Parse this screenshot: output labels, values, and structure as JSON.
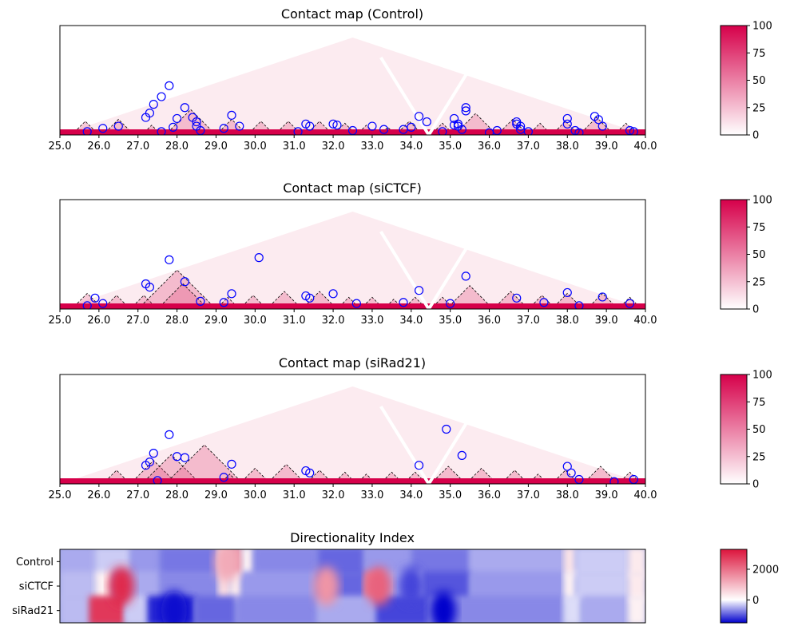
{
  "chart_data": [
    {
      "type": "heatmap",
      "title": "Contact map (Control)",
      "xlim": [
        25.0,
        40.0
      ],
      "xticks": [
        "25.0",
        "26.0",
        "27.0",
        "28.0",
        "29.0",
        "30.0",
        "31.0",
        "32.0",
        "33.0",
        "34.0",
        "35.0",
        "36.0",
        "37.0",
        "38.0",
        "39.0",
        "40.0"
      ],
      "colorbar": {
        "ticks": [
          "0",
          "25",
          "50",
          "75",
          "100"
        ],
        "range": [
          0,
          100
        ],
        "colors": [
          "#ffffff",
          "#d6004a"
        ]
      },
      "tads": [
        [
          25.3,
          26.0
        ],
        [
          26.1,
          26.9
        ],
        [
          27.1,
          27.6
        ],
        [
          27.7,
          29.0
        ],
        [
          29.0,
          29.8
        ],
        [
          29.8,
          30.5
        ],
        [
          30.5,
          31.2
        ],
        [
          31.3,
          32.0
        ],
        [
          32.0,
          32.6
        ],
        [
          32.6,
          33.1
        ],
        [
          33.2,
          33.6
        ],
        [
          33.6,
          34.3
        ],
        [
          34.5,
          35.1
        ],
        [
          35.1,
          36.2
        ],
        [
          36.2,
          37.0
        ],
        [
          37.0,
          37.6
        ],
        [
          37.6,
          38.3
        ],
        [
          38.3,
          39.2
        ],
        [
          39.2,
          39.8
        ]
      ],
      "loops": [
        [
          25.7,
          0.03
        ],
        [
          26.1,
          0.06
        ],
        [
          26.5,
          0.08
        ],
        [
          27.2,
          0.16
        ],
        [
          27.3,
          0.2
        ],
        [
          27.4,
          0.28
        ],
        [
          27.6,
          0.35
        ],
        [
          27.8,
          0.45
        ],
        [
          27.6,
          0.03
        ],
        [
          27.9,
          0.07
        ],
        [
          28.0,
          0.15
        ],
        [
          28.2,
          0.25
        ],
        [
          28.4,
          0.16
        ],
        [
          28.5,
          0.12
        ],
        [
          28.5,
          0.08
        ],
        [
          28.6,
          0.04
        ],
        [
          29.2,
          0.06
        ],
        [
          29.4,
          0.18
        ],
        [
          29.6,
          0.08
        ],
        [
          31.1,
          0.03
        ],
        [
          31.3,
          0.1
        ],
        [
          31.4,
          0.08
        ],
        [
          32.0,
          0.1
        ],
        [
          32.1,
          0.09
        ],
        [
          32.5,
          0.04
        ],
        [
          33.0,
          0.08
        ],
        [
          33.3,
          0.05
        ],
        [
          33.8,
          0.05
        ],
        [
          34.0,
          0.07
        ],
        [
          34.2,
          0.17
        ],
        [
          34.4,
          0.12
        ],
        [
          34.8,
          0.03
        ],
        [
          35.1,
          0.15
        ],
        [
          35.1,
          0.09
        ],
        [
          35.2,
          0.1
        ],
        [
          35.2,
          0.08
        ],
        [
          35.3,
          0.05
        ],
        [
          35.4,
          0.25
        ],
        [
          35.4,
          0.22
        ],
        [
          36.0,
          0.02
        ],
        [
          36.2,
          0.04
        ],
        [
          36.7,
          0.12
        ],
        [
          36.7,
          0.1
        ],
        [
          36.8,
          0.08
        ],
        [
          36.8,
          0.05
        ],
        [
          37.0,
          0.03
        ],
        [
          38.0,
          0.1
        ],
        [
          38.0,
          0.15
        ],
        [
          38.2,
          0.04
        ],
        [
          38.3,
          0.02
        ],
        [
          38.7,
          0.17
        ],
        [
          38.8,
          0.14
        ],
        [
          38.9,
          0.08
        ],
        [
          39.6,
          0.04
        ],
        [
          39.7,
          0.03
        ]
      ]
    },
    {
      "type": "heatmap",
      "title": "Contact map (siCTCF)",
      "xlim": [
        25.0,
        40.0
      ],
      "xticks": [
        "25.0",
        "26.0",
        "27.0",
        "28.0",
        "29.0",
        "30.0",
        "31.0",
        "32.0",
        "33.0",
        "34.0",
        "35.0",
        "36.0",
        "37.0",
        "38.0",
        "39.0",
        "40.0"
      ],
      "colorbar": {
        "ticks": [
          "0",
          "25",
          "50",
          "75",
          "100"
        ],
        "range": [
          0,
          100
        ],
        "colors": [
          "#ffffff",
          "#d6004a"
        ]
      },
      "tads": [
        [
          25.3,
          26.1
        ],
        [
          26.1,
          26.8
        ],
        [
          26.8,
          27.5
        ],
        [
          27.0,
          29.0
        ],
        [
          27.5,
          28.8
        ],
        [
          29.0,
          29.6
        ],
        [
          29.6,
          30.3
        ],
        [
          30.3,
          31.2
        ],
        [
          31.2,
          32.1
        ],
        [
          32.1,
          32.7
        ],
        [
          32.7,
          33.3
        ],
        [
          33.3,
          33.8
        ],
        [
          33.8,
          34.4
        ],
        [
          34.5,
          35.1
        ],
        [
          34.9,
          36.1
        ],
        [
          36.1,
          37.0
        ],
        [
          37.0,
          37.7
        ],
        [
          37.6,
          38.4
        ],
        [
          38.5,
          39.3
        ],
        [
          39.3,
          39.9
        ]
      ],
      "loops": [
        [
          25.7,
          0.03
        ],
        [
          25.9,
          0.1
        ],
        [
          26.1,
          0.05
        ],
        [
          27.2,
          0.23
        ],
        [
          27.3,
          0.2
        ],
        [
          27.8,
          0.45
        ],
        [
          28.2,
          0.25
        ],
        [
          28.6,
          0.07
        ],
        [
          29.2,
          0.06
        ],
        [
          29.4,
          0.14
        ],
        [
          30.1,
          0.47
        ],
        [
          31.3,
          0.12
        ],
        [
          31.4,
          0.1
        ],
        [
          32.0,
          0.14
        ],
        [
          32.6,
          0.05
        ],
        [
          33.8,
          0.06
        ],
        [
          34.2,
          0.17
        ],
        [
          35.0,
          0.05
        ],
        [
          35.4,
          0.3
        ],
        [
          36.7,
          0.1
        ],
        [
          37.4,
          0.06
        ],
        [
          38.0,
          0.15
        ],
        [
          38.3,
          0.03
        ],
        [
          38.9,
          0.11
        ],
        [
          39.6,
          0.05
        ]
      ]
    },
    {
      "type": "heatmap",
      "title": "Contact map (siRad21)",
      "xlim": [
        25.0,
        40.0
      ],
      "xticks": [
        "25.0",
        "26.0",
        "27.0",
        "28.0",
        "29.0",
        "30.0",
        "31.0",
        "32.0",
        "33.0",
        "34.0",
        "35.0",
        "36.0",
        "37.0",
        "38.0",
        "39.0",
        "40.0"
      ],
      "colorbar": {
        "ticks": [
          "0",
          "25",
          "50",
          "75",
          "100"
        ],
        "range": [
          0,
          100
        ],
        "colors": [
          "#ffffff",
          "#d6004a"
        ]
      },
      "tads": [
        [
          26.1,
          26.8
        ],
        [
          26.8,
          28.0
        ],
        [
          27.1,
          28.6
        ],
        [
          27.7,
          29.7
        ],
        [
          29.1,
          29.6
        ],
        [
          29.6,
          30.4
        ],
        [
          30.3,
          31.3
        ],
        [
          31.3,
          32.0
        ],
        [
          32.0,
          32.6
        ],
        [
          32.6,
          33.1
        ],
        [
          33.2,
          33.8
        ],
        [
          33.8,
          34.4
        ],
        [
          34.5,
          35.4
        ],
        [
          35.4,
          36.2
        ],
        [
          36.3,
          37.0
        ],
        [
          37.0,
          37.5
        ],
        [
          37.6,
          38.3
        ],
        [
          38.4,
          39.3
        ],
        [
          39.3,
          39.9
        ]
      ],
      "loops": [
        [
          27.2,
          0.17
        ],
        [
          27.3,
          0.2
        ],
        [
          27.4,
          0.28
        ],
        [
          27.5,
          0.03
        ],
        [
          27.8,
          0.45
        ],
        [
          28.0,
          0.25
        ],
        [
          28.2,
          0.24
        ],
        [
          29.2,
          0.06
        ],
        [
          29.4,
          0.18
        ],
        [
          31.3,
          0.12
        ],
        [
          31.4,
          0.1
        ],
        [
          34.2,
          0.17
        ],
        [
          34.9,
          0.5
        ],
        [
          35.3,
          0.26
        ],
        [
          38.0,
          0.16
        ],
        [
          38.1,
          0.1
        ],
        [
          38.3,
          0.04
        ],
        [
          39.2,
          0.02
        ],
        [
          39.7,
          0.04
        ]
      ]
    },
    {
      "type": "heatmap",
      "title": "Directionality Index",
      "rows": [
        "Control",
        "siCTCF",
        "siRad21"
      ],
      "colorbar": {
        "ticks": [
          "2000",
          "0"
        ],
        "range": [
          -1500,
          3300
        ],
        "colors": [
          "#0000cc",
          "#ffffff",
          "#dc143c"
        ]
      },
      "segments": [
        [
          [
            -500,
            0.0,
            0.06
          ],
          [
            -300,
            0.06,
            0.12
          ],
          [
            -600,
            0.12,
            0.17
          ],
          [
            -800,
            0.17,
            0.27
          ],
          [
            300,
            0.27,
            0.29
          ],
          [
            1500,
            0.29,
            0.31
          ],
          [
            200,
            0.31,
            0.33
          ],
          [
            -700,
            0.33,
            0.44
          ],
          [
            -900,
            0.44,
            0.52
          ],
          [
            -600,
            0.52,
            0.6
          ],
          [
            -800,
            0.6,
            0.7
          ],
          [
            -500,
            0.7,
            0.86
          ],
          [
            400,
            0.86,
            0.88
          ],
          [
            -300,
            0.88,
            0.97
          ],
          [
            300,
            0.97,
            1.0
          ]
        ],
        [
          [
            -400,
            0.0,
            0.06
          ],
          [
            200,
            0.06,
            0.09
          ],
          [
            -500,
            0.09,
            0.17
          ],
          [
            -700,
            0.17,
            0.27
          ],
          [
            500,
            0.27,
            0.29
          ],
          [
            300,
            0.29,
            0.31
          ],
          [
            -600,
            0.31,
            0.44
          ],
          [
            -900,
            0.44,
            0.52
          ],
          [
            1800,
            0.52,
            0.55
          ],
          [
            -500,
            0.55,
            0.62
          ],
          [
            -1000,
            0.62,
            0.7
          ],
          [
            -600,
            0.7,
            0.86
          ],
          [
            200,
            0.86,
            0.88
          ],
          [
            -300,
            0.88,
            0.97
          ],
          [
            300,
            0.97,
            1.0
          ]
        ],
        [
          [
            -400,
            0.0,
            0.05
          ],
          [
            2800,
            0.05,
            0.11
          ],
          [
            -300,
            0.11,
            0.15
          ],
          [
            -1300,
            0.15,
            0.23
          ],
          [
            -900,
            0.23,
            0.3
          ],
          [
            -700,
            0.3,
            0.44
          ],
          [
            -500,
            0.44,
            0.54
          ],
          [
            -1100,
            0.54,
            0.63
          ],
          [
            -700,
            0.63,
            0.86
          ],
          [
            -200,
            0.86,
            0.89
          ],
          [
            -500,
            0.89,
            0.97
          ],
          [
            200,
            0.97,
            1.0
          ]
        ]
      ],
      "blobs": [
        [
          0.105,
          1,
          3000
        ],
        [
          0.545,
          1,
          2200
        ],
        [
          0.455,
          1,
          1500
        ],
        [
          0.285,
          0,
          1200
        ],
        [
          0.655,
          2,
          -1500
        ],
        [
          0.195,
          2,
          -1400
        ],
        [
          0.6,
          1,
          -1100
        ]
      ]
    }
  ]
}
